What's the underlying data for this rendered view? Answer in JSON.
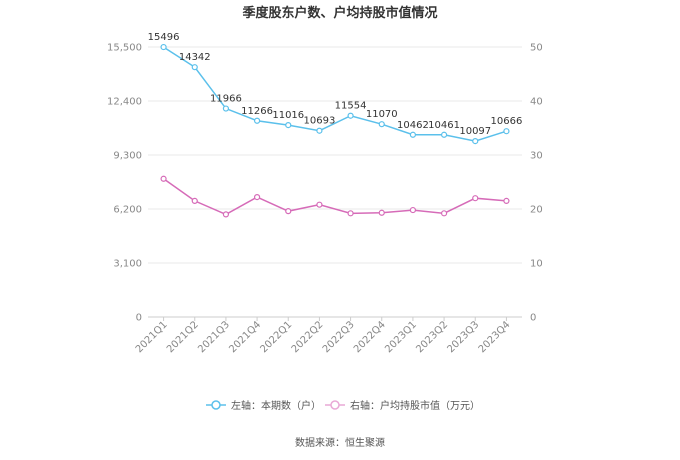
{
  "chart_data": {
    "type": "line",
    "title": "季度股东户数、户均持股市值情况",
    "categories": [
      "2021Q1",
      "2021Q2",
      "2021Q3",
      "2021Q4",
      "2022Q1",
      "2022Q2",
      "2022Q3",
      "2022Q4",
      "2023Q1",
      "2023Q2",
      "2023Q3",
      "2023Q4"
    ],
    "left_axis": {
      "ylim": [
        0,
        15500
      ],
      "ticks": [
        "0",
        "3,100",
        "6,200",
        "9,300",
        "12,400",
        "15,500"
      ],
      "tick_values": [
        0,
        3100,
        6200,
        9300,
        12400,
        15500
      ]
    },
    "right_axis": {
      "ylim": [
        0,
        50
      ],
      "ticks": [
        "0",
        "10",
        "20",
        "30",
        "40",
        "50"
      ],
      "tick_values": [
        0,
        10,
        20,
        30,
        40,
        50
      ]
    },
    "series": [
      {
        "name": "左轴：本期数（户）",
        "axis": "left",
        "color": "#5bc0eb",
        "values": [
          15496,
          14342,
          11966,
          11266,
          11016,
          10693,
          11554,
          11070,
          10462,
          10461,
          10097,
          10666
        ],
        "labels": [
          "15496",
          "14342",
          "11966",
          "11266",
          "11016",
          "10693",
          "11554",
          "11070",
          "10462",
          "10461",
          "10097",
          "10666"
        ]
      },
      {
        "name": "右轴：户均持股市值（万元）",
        "axis": "right",
        "color": "#d66bb8",
        "values": [
          25.6,
          21.5,
          19.0,
          22.2,
          19.6,
          20.8,
          19.2,
          19.3,
          19.8,
          19.2,
          22.0,
          21.5
        ]
      }
    ]
  },
  "source": "数据来源：恒生聚源"
}
